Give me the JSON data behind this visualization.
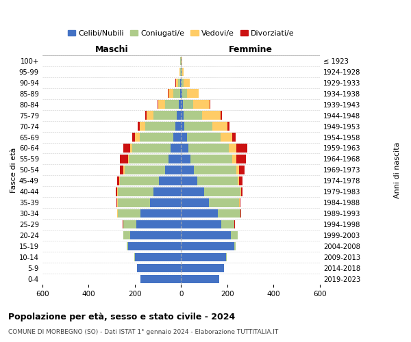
{
  "age_groups": [
    "0-4",
    "5-9",
    "10-14",
    "15-19",
    "20-24",
    "25-29",
    "30-34",
    "35-39",
    "40-44",
    "45-49",
    "50-54",
    "55-59",
    "60-64",
    "65-69",
    "70-74",
    "75-79",
    "80-84",
    "85-89",
    "90-94",
    "95-99",
    "100+"
  ],
  "birth_years": [
    "2019-2023",
    "2014-2018",
    "2009-2013",
    "2004-2008",
    "1999-2003",
    "1994-1998",
    "1989-1993",
    "1984-1988",
    "1979-1983",
    "1974-1978",
    "1969-1973",
    "1964-1968",
    "1959-1963",
    "1954-1958",
    "1949-1953",
    "1944-1948",
    "1939-1943",
    "1934-1938",
    "1929-1933",
    "1924-1928",
    "≤ 1923"
  ],
  "colors": {
    "celibe": "#4472C4",
    "coniugato": "#AECB8A",
    "vedovo": "#FFCC66",
    "divorziato": "#CC1111"
  },
  "male": {
    "celibe": [
      175,
      190,
      200,
      230,
      220,
      195,
      175,
      135,
      120,
      95,
      70,
      55,
      45,
      35,
      25,
      20,
      10,
      5,
      3,
      2,
      2
    ],
    "coniugato": [
      0,
      1,
      2,
      5,
      30,
      55,
      100,
      140,
      155,
      170,
      175,
      170,
      165,
      145,
      130,
      100,
      60,
      30,
      10,
      3,
      2
    ],
    "vedovo": [
      0,
      0,
      0,
      0,
      0,
      1,
      1,
      1,
      2,
      3,
      5,
      5,
      10,
      20,
      25,
      30,
      30,
      20,
      10,
      3,
      1
    ],
    "divorziato": [
      0,
      0,
      0,
      0,
      1,
      2,
      2,
      3,
      5,
      8,
      15,
      35,
      30,
      10,
      8,
      5,
      3,
      2,
      1,
      0,
      0
    ]
  },
  "female": {
    "celibe": [
      165,
      185,
      195,
      230,
      215,
      175,
      160,
      120,
      100,
      70,
      55,
      40,
      30,
      25,
      15,
      12,
      8,
      5,
      3,
      2,
      2
    ],
    "coniugato": [
      0,
      1,
      2,
      5,
      30,
      55,
      95,
      130,
      155,
      175,
      185,
      180,
      175,
      145,
      120,
      80,
      45,
      20,
      8,
      2,
      1
    ],
    "vedovo": [
      0,
      0,
      0,
      0,
      0,
      1,
      1,
      2,
      3,
      5,
      10,
      20,
      35,
      50,
      65,
      80,
      70,
      50,
      25,
      8,
      2
    ],
    "divorziato": [
      0,
      0,
      0,
      0,
      1,
      2,
      3,
      4,
      8,
      15,
      25,
      40,
      45,
      15,
      8,
      5,
      3,
      2,
      1,
      0,
      0
    ]
  },
  "xlim": 600,
  "title": "Popolazione per età, sesso e stato civile - 2024",
  "subtitle": "COMUNE DI MORBEGNO (SO) - Dati ISTAT 1° gennaio 2024 - Elaborazione TUTTITALIA.IT",
  "ylabel_left": "Fasce di età",
  "ylabel_right": "Anni di nascita",
  "xlabel_left": "Maschi",
  "xlabel_right": "Femmine",
  "legend_labels": [
    "Celibi/Nubili",
    "Coniugati/e",
    "Vedovi/e",
    "Divorziati/e"
  ],
  "background_color": "#ffffff",
  "grid_color": "#cccccc"
}
